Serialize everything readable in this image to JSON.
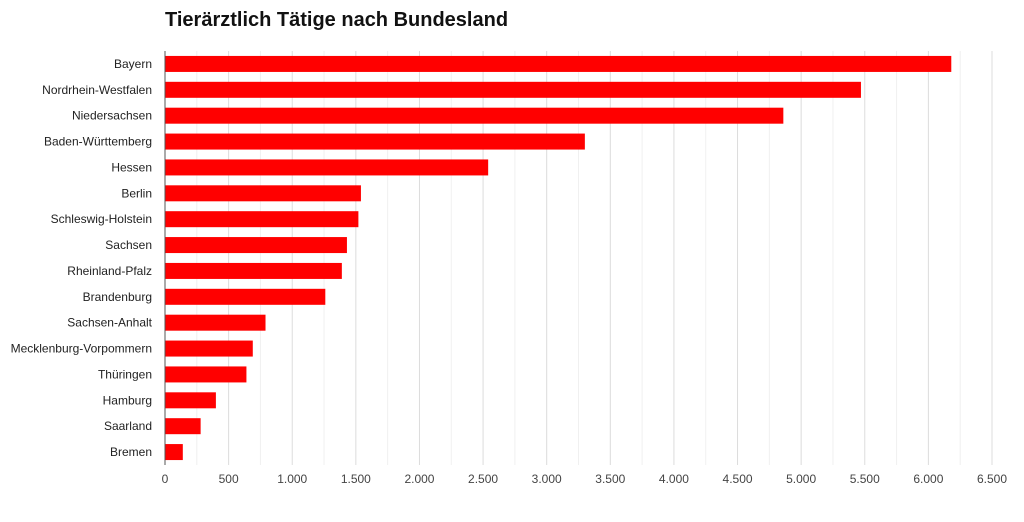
{
  "chart_data": {
    "type": "bar",
    "orientation": "horizontal",
    "title": "Tierärztlich Tätige nach Bundesland",
    "categories": [
      "Bayern",
      "Nordrhein-Westfalen",
      "Niedersachsen",
      "Baden-Württemberg",
      "Hessen",
      "Berlin",
      "Schleswig-Holstein",
      "Sachsen",
      "Rheinland-Pfalz",
      "Brandenburg",
      "Sachsen-Anhalt",
      "Mecklenburg-Vorpommern",
      "Thüringen",
      "Hamburg",
      "Saarland",
      "Bremen"
    ],
    "values": [
      6180,
      5470,
      4860,
      3300,
      2540,
      1540,
      1520,
      1430,
      1390,
      1260,
      790,
      690,
      640,
      400,
      280,
      140
    ],
    "xlim": [
      0,
      6500
    ],
    "xticks": [
      0,
      500,
      1000,
      1500,
      2000,
      2500,
      3000,
      3500,
      4000,
      4500,
      5000,
      5500,
      6000,
      6500
    ],
    "xtick_labels": [
      "0",
      "500",
      "1.000",
      "1.500",
      "2.000",
      "2.500",
      "3.000",
      "3.500",
      "4.000",
      "4.500",
      "5.000",
      "5.500",
      "6.000",
      "6.500"
    ],
    "grid": true,
    "bar_color": "#ff0000"
  }
}
